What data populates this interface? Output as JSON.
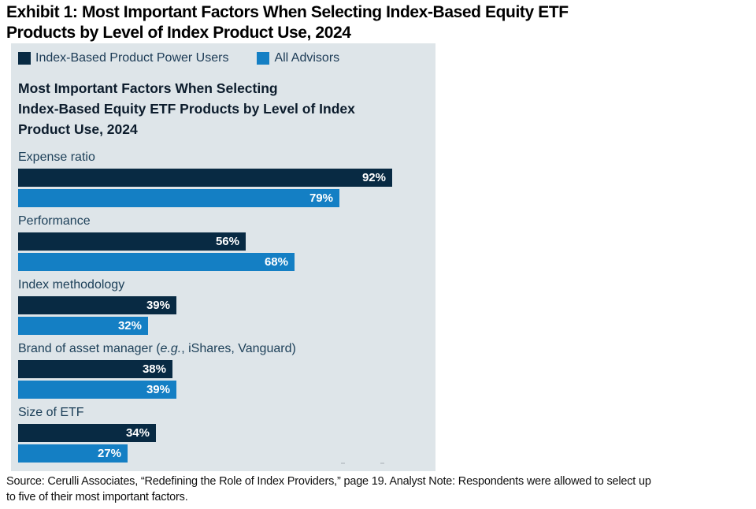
{
  "exhibit_title": {
    "lines": [
      "Exhibit 1: Most Important Factors When Selecting Index-Based Equity ETF",
      "Products by Level of Index Product Use, 2024"
    ]
  },
  "legend": [
    {
      "label": "Index-Based Product Power Users",
      "color": "#082a43"
    },
    {
      "label": "All Advisors",
      "color": "#147fc4"
    }
  ],
  "chart_title": {
    "lines": [
      "Most Important Factors When Selecting",
      "Index-Based Equity ETF Products by Level of Index",
      "Product Use, 2024"
    ]
  },
  "chart_data": {
    "type": "bar",
    "orientation": "horizontal",
    "title": "Most Important Factors When Selecting Index-Based Equity ETF Products by Level of Index Product Use, 2024",
    "categories": [
      {
        "pre": "Expense ratio",
        "italic": "",
        "post": ""
      },
      {
        "pre": "Performance",
        "italic": "",
        "post": ""
      },
      {
        "pre": "Index methodology",
        "italic": "",
        "post": ""
      },
      {
        "pre": "Brand of asset manager (",
        "italic": "e.g.",
        "post": ", iShares, Vanguard)"
      },
      {
        "pre": "Size of ETF",
        "italic": "",
        "post": ""
      }
    ],
    "series": [
      {
        "name": "Index-Based Product Power Users",
        "color": "#082a43",
        "values": [
          92,
          56,
          39,
          38,
          34
        ]
      },
      {
        "name": "All Advisors",
        "color": "#147fc4",
        "values": [
          79,
          68,
          32,
          39,
          27
        ]
      }
    ],
    "unit": "%",
    "xlim": [
      0,
      100
    ],
    "value_labels": "inside-right",
    "legend_position": "top",
    "grid": false,
    "panel_background": "#dee5e9"
  },
  "source_note": {
    "lines": [
      "Source: Cerulli Associates, “Redefining the Role of Index Providers,” page 19. Analyst Note: Respondents were allowed to select up",
      "to five of their most important factors."
    ]
  }
}
